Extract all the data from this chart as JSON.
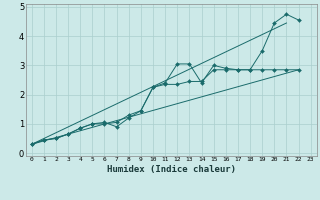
{
  "xlabel": "Humidex (Indice chaleur)",
  "ylabel": "",
  "bg_color": "#cce9e8",
  "line_color": "#1a6b6b",
  "grid_color": "#aacfce",
  "lines": [
    {
      "x": [
        0,
        1,
        2,
        3,
        4,
        5,
        6,
        7,
        8,
        9,
        10,
        11,
        12,
        13,
        14,
        15,
        16,
        17,
        18,
        19,
        20,
        21,
        22
      ],
      "y": [
        0.3,
        0.45,
        0.5,
        0.65,
        0.85,
        1.0,
        1.05,
        0.9,
        1.2,
        1.45,
        2.25,
        2.4,
        3.05,
        3.05,
        2.4,
        3.0,
        2.9,
        2.85,
        2.85,
        3.5,
        4.45,
        4.75,
        4.55
      ]
    },
    {
      "x": [
        0,
        1,
        2,
        3,
        4,
        5,
        6,
        7,
        8,
        9,
        10,
        11,
        12,
        13,
        14,
        15,
        16,
        17,
        18,
        19,
        20,
        21,
        22
      ],
      "y": [
        0.3,
        0.45,
        0.5,
        0.65,
        0.85,
        1.0,
        1.0,
        1.05,
        1.3,
        1.45,
        2.25,
        2.35,
        2.35,
        2.45,
        2.45,
        2.85,
        2.85,
        2.85,
        2.85,
        2.85,
        2.85,
        2.85,
        2.85
      ]
    },
    {
      "x": [
        0,
        21
      ],
      "y": [
        0.3,
        4.45
      ]
    },
    {
      "x": [
        0,
        22
      ],
      "y": [
        0.3,
        2.85
      ]
    }
  ],
  "xlim": [
    -0.5,
    23.5
  ],
  "ylim": [
    -0.1,
    5.1
  ],
  "xticks": [
    0,
    1,
    2,
    3,
    4,
    5,
    6,
    7,
    8,
    9,
    10,
    11,
    12,
    13,
    14,
    15,
    16,
    17,
    18,
    19,
    20,
    21,
    22,
    23
  ],
  "yticks": [
    0,
    1,
    2,
    3,
    4,
    5
  ],
  "xtick_labels": [
    "0",
    "1",
    "2",
    "3",
    "4",
    "5",
    "6",
    "7",
    "8",
    "9",
    "10",
    "11",
    "12",
    "13",
    "14",
    "15",
    "16",
    "17",
    "18",
    "19",
    "20",
    "21",
    "22",
    "23"
  ]
}
